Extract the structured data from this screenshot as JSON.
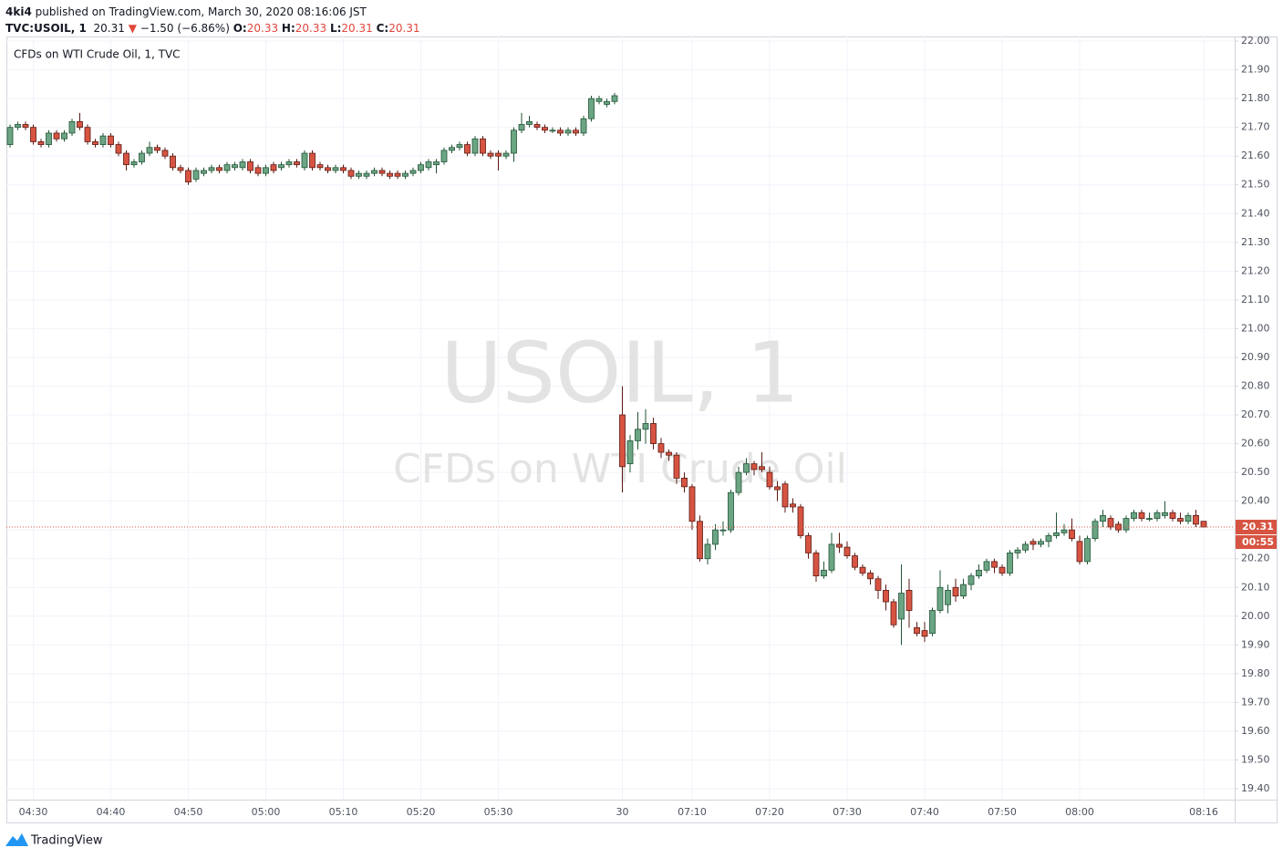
{
  "header": {
    "author": "4ki4",
    "published": "published on TradingView.com, March 30, 2020 08:16:06 JST",
    "symbol": "TVC:USOIL, 1",
    "direction": "▼",
    "change": "−1.50 (−6.86%)",
    "ohlc_labels": [
      "O:",
      "H:",
      "L:",
      "C:"
    ]
  },
  "footer": {
    "brand": "TradingView"
  },
  "chart_data": {
    "type": "candlestick",
    "title": "CFDs on WTI Crude Oil, 1, TVC",
    "watermark": "USOIL, 1",
    "watermark_subtitle": "CFDs on WTI Crude Oil",
    "up_color": "#6ba583",
    "down_color": "#d75442",
    "grid": true,
    "countdown": "00:55",
    "ylim": [
      19.362,
      22.016
    ],
    "yticks": [
      {
        "value": 22,
        "label": "22.00"
      },
      {
        "value": 21.9,
        "label": "21.90"
      },
      {
        "value": 21.8,
        "label": "21.80"
      },
      {
        "value": 21.7,
        "label": "21.70"
      },
      {
        "value": 21.6,
        "label": "21.60"
      },
      {
        "value": 21.5,
        "label": "21.50"
      },
      {
        "value": 21.4,
        "label": "21.40"
      },
      {
        "value": 21.3,
        "label": "21.30"
      },
      {
        "value": 21.2,
        "label": "21.20"
      },
      {
        "value": 21.1,
        "label": "21.10"
      },
      {
        "value": 21,
        "label": "21.00"
      },
      {
        "value": 20.9,
        "label": "20.90"
      },
      {
        "value": 20.8,
        "label": "20.80"
      },
      {
        "value": 20.7,
        "label": "20.70"
      },
      {
        "value": 20.6,
        "label": "20.60"
      },
      {
        "value": 20.5,
        "label": "20.50"
      },
      {
        "value": 20.4,
        "label": "20.40"
      },
      {
        "value": 20.3,
        "label": "20.30"
      },
      {
        "value": 20.2,
        "label": "20.20"
      },
      {
        "value": 20.1,
        "label": "20.10"
      },
      {
        "value": 20,
        "label": "20.00"
      },
      {
        "value": 19.9,
        "label": "19.90"
      },
      {
        "value": 19.8,
        "label": "19.80"
      },
      {
        "value": 19.7,
        "label": "19.70"
      },
      {
        "value": 19.6,
        "label": "19.60"
      },
      {
        "value": 19.5,
        "label": "19.50"
      },
      {
        "value": 19.4,
        "label": "19.40"
      }
    ],
    "categories": [
      null,
      null,
      null,
      "04:30",
      null,
      null,
      null,
      null,
      null,
      null,
      null,
      null,
      null,
      "04:40",
      null,
      null,
      null,
      null,
      null,
      null,
      null,
      null,
      null,
      "04:50",
      null,
      null,
      null,
      null,
      null,
      null,
      null,
      null,
      null,
      "05:00",
      null,
      null,
      null,
      null,
      null,
      null,
      null,
      null,
      null,
      "05:10",
      null,
      null,
      null,
      null,
      null,
      null,
      null,
      null,
      null,
      "05:20",
      null,
      null,
      null,
      null,
      null,
      null,
      null,
      null,
      null,
      "05:30",
      null,
      null,
      null,
      null,
      null,
      null,
      null,
      null,
      null,
      null,
      null,
      null,
      null,
      null,
      null,
      "30",
      null,
      null,
      null,
      null,
      null,
      null,
      null,
      null,
      "07:10",
      null,
      null,
      null,
      null,
      null,
      null,
      null,
      null,
      null,
      "07:20",
      null,
      null,
      null,
      null,
      null,
      null,
      null,
      null,
      null,
      "07:30",
      null,
      null,
      null,
      null,
      null,
      null,
      null,
      null,
      null,
      "07:40",
      null,
      null,
      null,
      null,
      null,
      null,
      null,
      null,
      null,
      "07:50",
      null,
      null,
      null,
      null,
      null,
      null,
      null,
      null,
      null,
      "08:00",
      null,
      null,
      null,
      null,
      null,
      null,
      null,
      null,
      null,
      null,
      null,
      null,
      null,
      null,
      null,
      "08:16"
    ],
    "ohlc": [
      [
        21.64,
        21.71,
        21.63,
        21.7
      ],
      [
        21.7,
        21.72,
        21.69,
        21.71
      ],
      [
        21.71,
        21.72,
        21.69,
        21.7
      ],
      [
        21.7,
        21.71,
        21.64,
        21.65
      ],
      [
        21.65,
        21.66,
        21.63,
        21.64
      ],
      [
        21.64,
        21.69,
        21.63,
        21.68
      ],
      [
        21.68,
        21.69,
        21.65,
        21.66
      ],
      [
        21.66,
        21.69,
        21.65,
        21.68
      ],
      [
        21.68,
        21.73,
        21.67,
        21.72
      ],
      [
        21.72,
        21.75,
        21.69,
        21.7
      ],
      [
        21.7,
        21.71,
        21.64,
        21.65
      ],
      [
        21.65,
        21.66,
        21.63,
        21.64
      ],
      [
        21.64,
        21.68,
        21.63,
        21.67
      ],
      [
        21.67,
        21.68,
        21.63,
        21.64
      ],
      [
        21.64,
        21.65,
        21.6,
        21.61
      ],
      [
        21.61,
        21.62,
        21.55,
        21.57
      ],
      [
        21.57,
        21.59,
        21.56,
        21.58
      ],
      [
        21.58,
        21.62,
        21.57,
        21.61
      ],
      [
        21.61,
        21.65,
        21.6,
        21.63
      ],
      [
        21.63,
        21.64,
        21.61,
        21.62
      ],
      [
        21.62,
        21.63,
        21.59,
        21.6
      ],
      [
        21.6,
        21.61,
        21.55,
        21.56
      ],
      [
        21.56,
        21.57,
        21.54,
        21.55
      ],
      [
        21.55,
        21.56,
        21.5,
        21.51
      ],
      [
        21.52,
        21.56,
        21.51,
        21.55
      ],
      [
        21.54,
        21.56,
        21.53,
        21.55
      ],
      [
        21.55,
        21.57,
        21.54,
        21.56
      ],
      [
        21.56,
        21.57,
        21.54,
        21.55
      ],
      [
        21.55,
        21.58,
        21.54,
        21.57
      ],
      [
        21.56,
        21.58,
        21.55,
        21.57
      ],
      [
        21.56,
        21.59,
        21.55,
        21.58
      ],
      [
        21.58,
        21.59,
        21.54,
        21.55
      ],
      [
        21.56,
        21.57,
        21.53,
        21.54
      ],
      [
        21.54,
        21.57,
        21.53,
        21.56
      ],
      [
        21.57,
        21.58,
        21.54,
        21.55
      ],
      [
        21.56,
        21.58,
        21.55,
        21.57
      ],
      [
        21.57,
        21.59,
        21.56,
        21.58
      ],
      [
        21.58,
        21.59,
        21.56,
        21.57
      ],
      [
        21.56,
        21.62,
        21.55,
        21.61
      ],
      [
        21.61,
        21.62,
        21.55,
        21.56
      ],
      [
        21.57,
        21.58,
        21.55,
        21.56
      ],
      [
        21.56,
        21.57,
        21.54,
        21.55
      ],
      [
        21.55,
        21.57,
        21.54,
        21.56
      ],
      [
        21.56,
        21.57,
        21.54,
        21.55
      ],
      [
        21.55,
        21.56,
        21.52,
        21.53
      ],
      [
        21.53,
        21.55,
        21.52,
        21.54
      ],
      [
        21.53,
        21.55,
        21.52,
        21.54
      ],
      [
        21.54,
        21.56,
        21.53,
        21.55
      ],
      [
        21.55,
        21.56,
        21.53,
        21.54
      ],
      [
        21.54,
        21.55,
        21.52,
        21.53
      ],
      [
        21.54,
        21.55,
        21.52,
        21.53
      ],
      [
        21.53,
        21.55,
        21.52,
        21.54
      ],
      [
        21.54,
        21.56,
        21.53,
        21.55
      ],
      [
        21.55,
        21.58,
        21.54,
        21.57
      ],
      [
        21.56,
        21.59,
        21.55,
        21.58
      ],
      [
        21.57,
        21.59,
        21.54,
        21.58
      ],
      [
        21.58,
        21.63,
        21.57,
        21.62
      ],
      [
        21.62,
        21.64,
        21.61,
        21.63
      ],
      [
        21.63,
        21.65,
        21.62,
        21.64
      ],
      [
        21.64,
        21.65,
        21.6,
        21.61
      ],
      [
        21.61,
        21.67,
        21.6,
        21.66
      ],
      [
        21.66,
        21.67,
        21.6,
        21.61
      ],
      [
        21.61,
        21.62,
        21.59,
        21.6
      ],
      [
        21.61,
        21.62,
        21.55,
        21.6
      ],
      [
        21.6,
        21.62,
        21.59,
        21.61
      ],
      [
        21.61,
        21.7,
        21.58,
        21.69
      ],
      [
        21.69,
        21.75,
        21.68,
        21.71
      ],
      [
        21.71,
        21.74,
        21.7,
        21.72
      ],
      [
        21.71,
        21.72,
        21.69,
        21.7
      ],
      [
        21.7,
        21.71,
        21.68,
        21.69
      ],
      [
        21.69,
        21.7,
        21.68,
        21.69
      ],
      [
        21.69,
        21.7,
        21.67,
        21.68
      ],
      [
        21.68,
        21.7,
        21.67,
        21.69
      ],
      [
        21.69,
        21.7,
        21.67,
        21.68
      ],
      [
        21.68,
        21.74,
        21.67,
        21.73
      ],
      [
        21.73,
        21.81,
        21.72,
        21.8
      ],
      [
        21.79,
        21.81,
        21.78,
        21.8
      ],
      [
        21.78,
        21.8,
        21.77,
        21.79
      ],
      [
        21.79,
        21.82,
        21.78,
        21.81
      ],
      [
        20.7,
        20.8,
        20.43,
        20.52
      ],
      [
        20.53,
        20.63,
        20.5,
        20.61
      ],
      [
        20.61,
        20.71,
        20.58,
        20.65
      ],
      [
        20.65,
        20.72,
        20.6,
        20.67
      ],
      [
        20.67,
        20.69,
        20.58,
        20.6
      ],
      [
        20.6,
        20.62,
        20.55,
        20.57
      ],
      [
        20.57,
        20.58,
        20.54,
        20.56
      ],
      [
        20.56,
        20.57,
        20.46,
        20.48
      ],
      [
        20.48,
        20.5,
        20.43,
        20.45
      ],
      [
        20.45,
        20.46,
        20.3,
        20.33
      ],
      [
        20.33,
        20.35,
        20.19,
        20.2
      ],
      [
        20.2,
        20.27,
        20.18,
        20.25
      ],
      [
        20.25,
        20.32,
        20.23,
        20.3
      ],
      [
        20.3,
        20.33,
        20.28,
        20.3
      ],
      [
        20.3,
        20.44,
        20.29,
        20.43
      ],
      [
        20.43,
        20.52,
        20.42,
        20.5
      ],
      [
        20.5,
        20.55,
        20.49,
        20.53
      ],
      [
        20.53,
        20.54,
        20.49,
        20.51
      ],
      [
        20.52,
        20.57,
        20.5,
        20.51
      ],
      [
        20.5,
        20.52,
        20.44,
        20.45
      ],
      [
        20.45,
        20.47,
        20.4,
        20.44
      ],
      [
        20.46,
        20.47,
        20.36,
        20.38
      ],
      [
        20.39,
        20.41,
        20.36,
        20.38
      ],
      [
        20.38,
        20.39,
        20.27,
        20.28
      ],
      [
        20.28,
        20.29,
        20.2,
        20.22
      ],
      [
        20.22,
        20.23,
        20.12,
        20.14
      ],
      [
        20.14,
        20.19,
        20.13,
        20.16
      ],
      [
        20.16,
        20.29,
        20.15,
        20.25
      ],
      [
        20.25,
        20.29,
        20.22,
        20.24
      ],
      [
        20.24,
        20.26,
        20.2,
        20.21
      ],
      [
        20.21,
        20.22,
        20.16,
        20.17
      ],
      [
        20.17,
        20.18,
        20.14,
        20.15
      ],
      [
        20.15,
        20.16,
        20.11,
        20.13
      ],
      [
        20.13,
        20.14,
        20.06,
        20.09
      ],
      [
        20.09,
        20.11,
        20.02,
        20.05
      ],
      [
        20.05,
        20.06,
        19.96,
        19.97
      ],
      [
        19.99,
        20.18,
        19.9,
        20.08
      ],
      [
        20.09,
        20.13,
        19.96,
        20.02
      ],
      [
        19.96,
        19.98,
        19.93,
        19.94
      ],
      [
        19.95,
        19.98,
        19.91,
        19.93
      ],
      [
        19.94,
        20.03,
        19.93,
        20.02
      ],
      [
        20.02,
        20.16,
        20.01,
        20.1
      ],
      [
        20.04,
        20.11,
        20.01,
        20.09
      ],
      [
        20.1,
        20.13,
        20.05,
        20.07
      ],
      [
        20.07,
        20.13,
        20.06,
        20.11
      ],
      [
        20.11,
        20.15,
        20.09,
        20.14
      ],
      [
        20.14,
        20.18,
        20.13,
        20.16
      ],
      [
        20.16,
        20.2,
        20.15,
        20.19
      ],
      [
        20.19,
        20.2,
        20.15,
        20.17
      ],
      [
        20.17,
        20.18,
        20.14,
        20.15
      ],
      [
        20.15,
        20.23,
        20.14,
        20.22
      ],
      [
        20.22,
        20.24,
        20.2,
        20.23
      ],
      [
        20.23,
        20.26,
        20.22,
        20.25
      ],
      [
        20.26,
        20.27,
        20.23,
        20.25
      ],
      [
        20.25,
        20.27,
        20.24,
        20.26
      ],
      [
        20.26,
        20.29,
        20.24,
        20.28
      ],
      [
        20.28,
        20.36,
        20.27,
        20.29
      ],
      [
        20.29,
        20.32,
        20.28,
        20.3
      ],
      [
        20.3,
        20.34,
        20.26,
        20.27
      ],
      [
        20.26,
        20.28,
        20.18,
        20.19
      ],
      [
        20.19,
        20.28,
        20.18,
        20.27
      ],
      [
        20.27,
        20.34,
        20.26,
        20.33
      ],
      [
        20.33,
        20.37,
        20.31,
        20.35
      ],
      [
        20.34,
        20.35,
        20.3,
        20.31
      ],
      [
        20.32,
        20.33,
        20.29,
        20.3
      ],
      [
        20.3,
        20.35,
        20.29,
        20.34
      ],
      [
        20.34,
        20.37,
        20.33,
        20.36
      ],
      [
        20.36,
        20.37,
        20.33,
        20.34
      ],
      [
        20.34,
        20.36,
        20.33,
        20.34
      ],
      [
        20.34,
        20.37,
        20.33,
        20.36
      ],
      [
        20.35,
        20.4,
        20.34,
        20.36
      ],
      [
        20.36,
        20.37,
        20.33,
        20.34
      ],
      [
        20.34,
        20.36,
        20.32,
        20.33
      ],
      [
        20.33,
        20.36,
        20.32,
        20.35
      ],
      [
        20.35,
        20.37,
        20.31,
        20.32
      ],
      [
        20.33,
        20.33,
        20.31,
        20.31
      ]
    ]
  }
}
